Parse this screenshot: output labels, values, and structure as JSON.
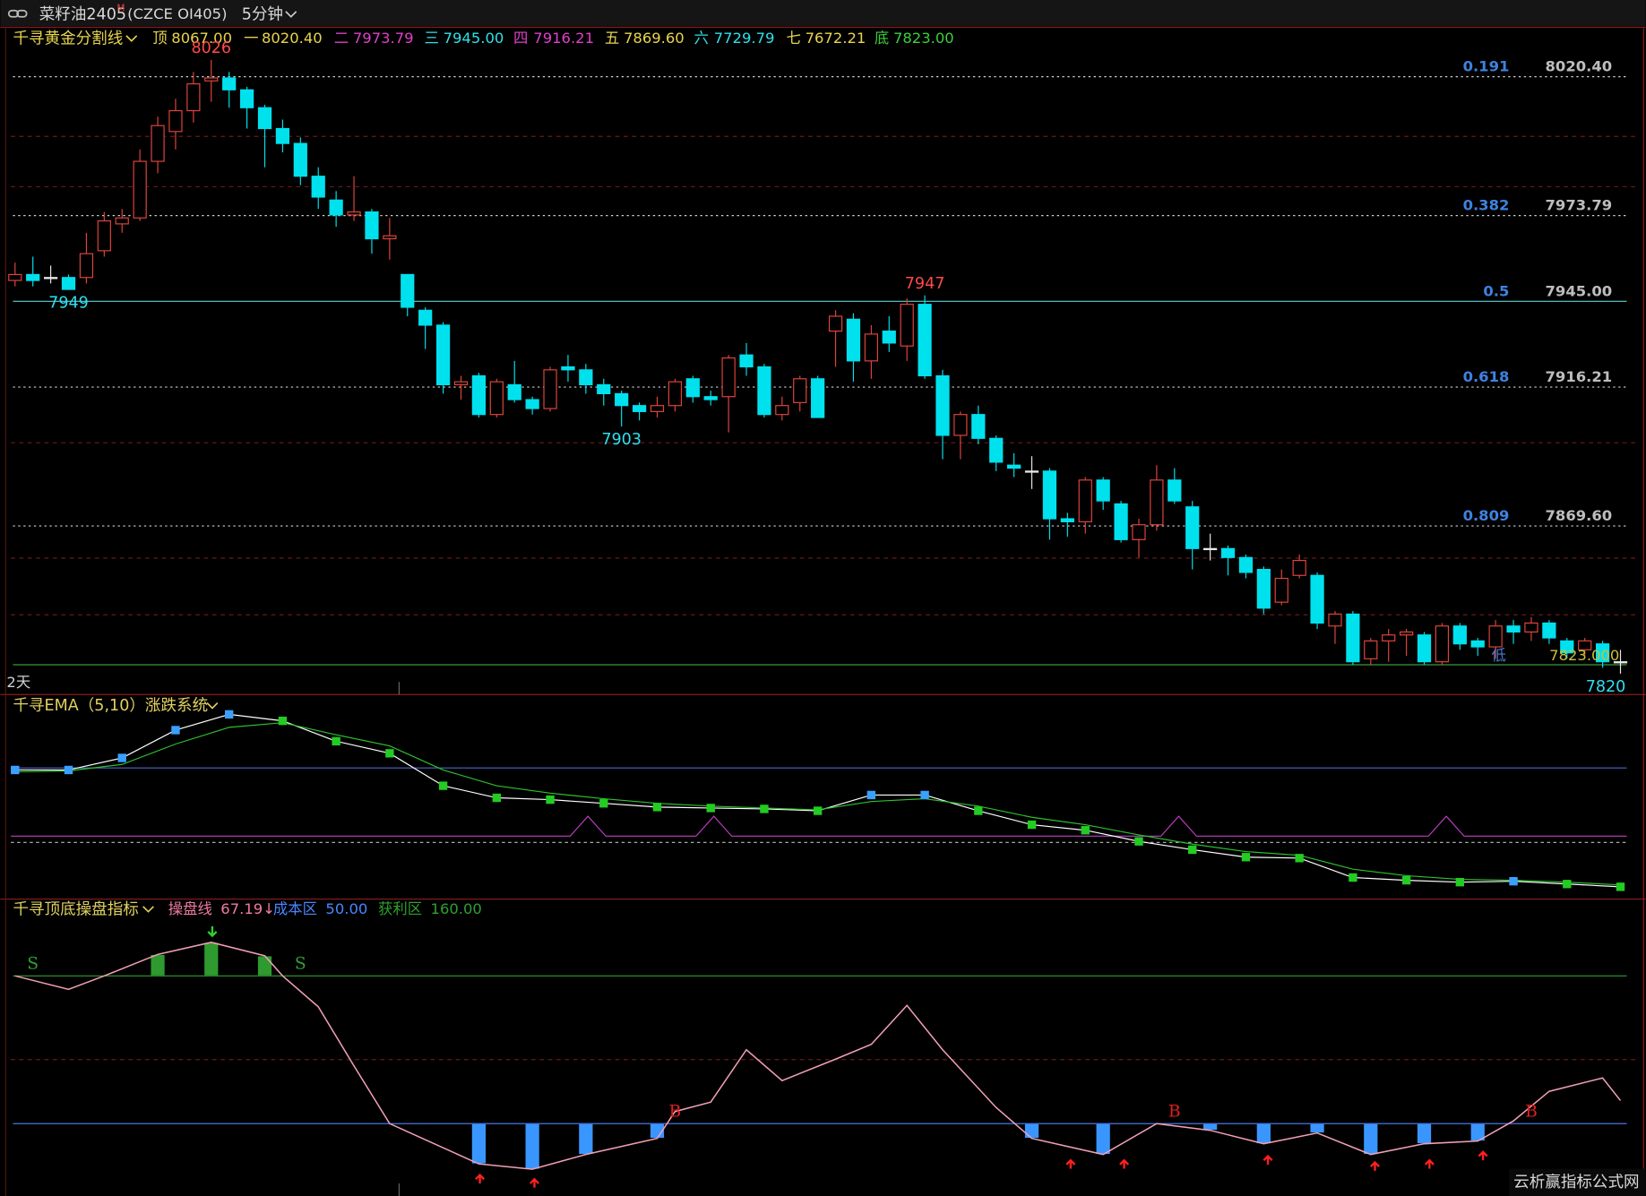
{
  "header": {
    "symbol": "菜籽油2405",
    "mark": "M",
    "code": "(CZCE OI405)",
    "period": "5分钟"
  },
  "chart_data": [
    {
      "type": "candlestick",
      "title": "千寻黄金分割线",
      "levels": [
        {
          "name": "顶",
          "value": {
            "value": 8067,
            "label": "8067.00"
          },
          "color": "#e8d44d"
        },
        {
          "name": "一",
          "value": {
            "value": 8020.4,
            "label": "8020.40"
          },
          "color": "#e8d44d"
        },
        {
          "name": "二",
          "value": 7973.79,
          "color": "#e040c8"
        },
        {
          "name": "三",
          "value": {
            "value": 7945,
            "label": "7945.00"
          },
          "color": "#30e0e8"
        },
        {
          "name": "四",
          "value": 7916.21,
          "color": "#e040c8"
        },
        {
          "name": "五",
          "value": {
            "value": 7869.6,
            "label": "7869.60"
          },
          "color": "#e8d44d"
        },
        {
          "name": "六",
          "value": 7729.79,
          "color": "#30e0e8"
        },
        {
          "name": "七",
          "value": 7672.21,
          "color": "#e8d44d"
        },
        {
          "name": "底",
          "value": {
            "value": 7823,
            "label": "7823.00"
          },
          "color": "#3ccf3c"
        }
      ],
      "open": [
        7952,
        7954,
        7953,
        7953,
        7953,
        7962,
        7971,
        7973,
        7992,
        8002,
        8009,
        8019,
        8020,
        8016,
        8010,
        8003,
        7998,
        7987,
        7979,
        7974,
        7975,
        7966,
        7954,
        7942,
        7937,
        7917,
        7920,
        7907,
        7917,
        7912,
        7909,
        7923,
        7922,
        7917,
        7914,
        7910,
        7908,
        7910,
        7919,
        7913,
        7913,
        7927,
        7923,
        7907,
        7911,
        7919,
        7935,
        7939,
        7925,
        7935,
        7930,
        7944,
        7920,
        7900,
        7907,
        7899,
        7890,
        7888,
        7888,
        7872,
        7871,
        7885,
        7877,
        7865,
        7870,
        7885,
        7876,
        7862,
        7862,
        7859,
        7855,
        7844,
        7853,
        7853,
        7836,
        7840,
        7825,
        7831,
        7833,
        7833,
        7824,
        7836,
        7831,
        7829,
        7836,
        7834,
        7837,
        7831,
        7828,
        7830,
        7824
      ],
      "high": [
        7958,
        7960,
        7957,
        7954,
        7968,
        7975,
        7976,
        7996,
        8007,
        8013,
        8022,
        8026,
        8022,
        8017,
        8011,
        8006,
        8000,
        7990,
        7982,
        7987,
        7976,
        7973,
        7954,
        7943,
        7938,
        7920,
        7921,
        7919,
        7925,
        7913,
        7923,
        7927,
        7924,
        7919,
        7915,
        7911,
        7913,
        7919,
        7920,
        7915,
        7927,
        7931,
        7924,
        7913,
        7920,
        7920,
        7942,
        7941,
        7937,
        7940,
        7946,
        7947,
        7922,
        7908,
        7910,
        7900,
        7894,
        7893,
        7889,
        7874,
        7886,
        7886,
        7878,
        7872,
        7890,
        7889,
        7878,
        7867,
        7863,
        7860,
        7856,
        7855,
        7860,
        7854,
        7841,
        7841,
        7832,
        7835,
        7835,
        7834,
        7837,
        7837,
        7832,
        7838,
        7838,
        7839,
        7838,
        7832,
        7832,
        7831,
        7828
      ],
      "low": [
        7950,
        7950,
        7951,
        7949,
        7951,
        7960,
        7968,
        7972,
        7988,
        7996,
        8005,
        8012,
        8010,
        8003,
        7990,
        7995,
        7984,
        7976,
        7970,
        7972,
        7961,
        7959,
        7940,
        7929,
        7914,
        7912,
        7906,
        7906,
        7911,
        7907,
        7908,
        7918,
        7914,
        7910,
        7903,
        7905,
        7906,
        7908,
        7911,
        7910,
        7901,
        7920,
        7906,
        7905,
        7908,
        7906,
        7923,
        7918,
        7919,
        7928,
        7925,
        7919,
        7892,
        7892,
        7897,
        7888,
        7886,
        7882,
        7865,
        7866,
        7867,
        7875,
        7864,
        7859,
        7868,
        7877,
        7855,
        7858,
        7853,
        7852,
        7840,
        7843,
        7852,
        7835,
        7830,
        7823,
        7823,
        7824,
        7826,
        7823,
        7823,
        7828,
        7826,
        7825,
        7830,
        7831,
        7830,
        7825,
        7826,
        7822,
        7820
      ],
      "close": [
        7954,
        7952,
        7953,
        7949,
        7961,
        7972,
        7973,
        7992,
        8004,
        8009,
        8018,
        8020,
        8016,
        8010,
        8003,
        7998,
        7987,
        7980,
        7974,
        7975,
        7966,
        7967,
        7943,
        7937,
        7917,
        7918,
        7907,
        7918,
        7912,
        7909,
        7922,
        7922,
        7917,
        7914,
        7910,
        7908,
        7910,
        7918,
        7913,
        7912,
        7926,
        7923,
        7907,
        7910,
        7919,
        7906,
        7940,
        7925,
        7934,
        7931,
        7944,
        7920,
        7900,
        7907,
        7899,
        7891,
        7889,
        7888,
        7872,
        7871,
        7885,
        7878,
        7865,
        7870,
        7885,
        7878,
        7862,
        7862,
        7859,
        7854,
        7842,
        7852,
        7858,
        7837,
        7840,
        7824,
        7831,
        7833,
        7834,
        7824,
        7836,
        7830,
        7829,
        7836,
        7834,
        7837,
        7832,
        7827,
        7831,
        7824,
        7824
      ],
      "up_color": "#e0453c",
      "down_color": "#00e1ee",
      "ylim": [
        7813,
        8037
      ],
      "fib": [
        {
          "ratio": 0.191,
          "price": {
            "value": 8020.4,
            "label": "8020.40"
          },
          "color": "#d0d0d0",
          "dashed": true
        },
        {
          "ratio": 0.382,
          "price": 7973.79,
          "color": "#d0d0d0",
          "dashed": true
        },
        {
          "ratio": 0.5,
          "price": {
            "value": 7945,
            "label": "7945.00"
          },
          "color": "#5ccfd6",
          "dashed": false
        },
        {
          "ratio": 0.618,
          "price": 7916.21,
          "color": "#d0d0d0",
          "dashed": true
        },
        {
          "ratio": 0.809,
          "price": {
            "value": 7869.6,
            "label": "7869.60"
          },
          "color": "#d0d0d0",
          "dashed": true
        }
      ],
      "bottom": {
        "value": 7823,
        "label": "7823.000"
      },
      "bottom_mark": "低",
      "extremes": [
        8026,
        7949,
        7903,
        7947,
        7820
      ],
      "span": "2天"
    },
    {
      "type": "ema",
      "title": "千寻EMA（5,10）涨跌系统",
      "x": [
        0,
        3,
        6,
        9,
        12,
        15,
        18,
        21,
        24,
        27,
        30,
        33,
        36,
        39,
        42,
        45,
        48,
        51,
        54,
        57,
        60,
        63,
        66,
        69,
        72,
        75,
        78,
        81,
        84,
        87,
        90
      ],
      "series": [
        {
          "color": "#ffffff",
          "values": [
            7952,
            7952,
            7965,
            7995,
            8012,
            8005,
            7983,
            7970,
            7935,
            7922,
            7920,
            7916,
            7912,
            7911,
            7910,
            7908,
            7925,
            7925,
            7908,
            7893,
            7887,
            7875,
            7866,
            7858,
            7857,
            7836,
            7833,
            7831,
            7832,
            7829,
            7826
          ]
        },
        {
          "color": "#2ec02e",
          "values": [
            7950,
            7951,
            7958,
            7980,
            7998,
            8003,
            7990,
            7978,
            7952,
            7935,
            7927,
            7921,
            7916,
            7913,
            7911,
            7909,
            7918,
            7921,
            7913,
            7901,
            7893,
            7882,
            7872,
            7864,
            7860,
            7845,
            7838,
            7834,
            7833,
            7831,
            7828
          ]
        }
      ],
      "rise_color": "#3aa0ff",
      "fall_color": "#22cc22",
      "ylim": [
        7815,
        8030
      ]
    },
    {
      "type": "oscillator",
      "title": "千寻顶底操盘指标",
      "legend": [
        {
          "name": "操盘线",
          "value": 67.19,
          "suffix": "↓",
          "color": "#f07aa0"
        },
        {
          "name": "成本区",
          "value": {
            "value": 50,
            "label": "50.00"
          },
          "color": "#4a86ff"
        },
        {
          "name": "获利区",
          "value": {
            "value": 160,
            "label": "160.00"
          },
          "color": "#2fa02f"
        }
      ],
      "x": [
        0,
        3,
        5,
        8,
        11,
        14,
        15,
        17,
        19,
        21,
        26,
        29,
        32,
        36,
        37,
        39,
        41,
        43,
        46,
        48,
        50,
        52,
        55,
        57,
        61,
        64,
        67,
        70,
        73,
        76,
        79,
        82,
        84,
        86,
        89,
        90
      ],
      "values": [
        160,
        150,
        160,
        176,
        185,
        175,
        160,
        137,
        93,
        50,
        20,
        16,
        27,
        39,
        59,
        66,
        105,
        82,
        98,
        109,
        138,
        105,
        62,
        39,
        27,
        50,
        45,
        35,
        43,
        27,
        35,
        37,
        52,
        74,
        84,
        67.19
      ],
      "color": "#f0a0b4",
      "profit_color": "#2f9a2f",
      "cost_color": "#3a96ff",
      "signals": [
        {
          "label": "S",
          "x": 1,
          "color": "#2fa02f"
        },
        {
          "label": "S",
          "x": 16,
          "color": "#2fa02f"
        },
        {
          "label": "B",
          "x": 37,
          "color": "#e02020"
        },
        {
          "label": "B",
          "x": 65,
          "color": "#e02020"
        },
        {
          "label": "B",
          "x": 85,
          "color": "#e02020"
        }
      ],
      "ylim": [
        0,
        200
      ]
    }
  ],
  "watermark": "云析赢指标公式网"
}
